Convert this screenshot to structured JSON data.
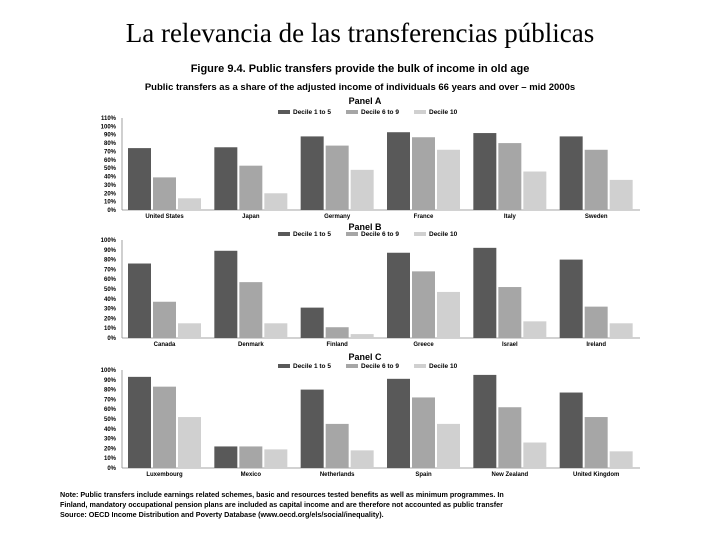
{
  "slide": {
    "title": "La relevancia de las transferencias públicas"
  },
  "figure": {
    "title": "Figure 9.4. Public transfers provide the bulk of income in old age",
    "subtitle": "Public transfers as a share of the adjusted income of individuals 66 years and over – mid 2000s",
    "note_line1": "Note: Public transfers include earnings related schemes, basic and resources tested benefits as well as minimum programmes. In",
    "note_line2": "Finland, mandatory occupational pension plans are included as capital income and are therefore not accounted as public transfer",
    "source": "Source: OECD Income Distribution and Poverty Database (www.oecd.org/els/social/inequality)."
  },
  "colors": {
    "decile1": "#595959",
    "decile5": "#a6a6a6",
    "decile10": "#d0d0d0"
  },
  "chart_data": [
    {
      "type": "bar",
      "title": "Panel A",
      "legend": [
        "Decile 1 to 5",
        "Decile 6 to 9",
        "Decile 10"
      ],
      "categories": [
        "United States",
        "Japan",
        "Germany",
        "France",
        "Italy",
        "Sweden"
      ],
      "series": [
        {
          "name": "Decile 1 to 5",
          "values": [
            74,
            75,
            88,
            93,
            92,
            88
          ]
        },
        {
          "name": "Decile 6 to 9",
          "values": [
            39,
            53,
            77,
            87,
            80,
            72
          ]
        },
        {
          "name": "Decile 10",
          "values": [
            14,
            20,
            48,
            72,
            46,
            36
          ]
        }
      ],
      "yticks": [
        "0%",
        "10%",
        "20%",
        "30%",
        "40%",
        "50%",
        "60%",
        "70%",
        "80%",
        "90%",
        "100%",
        "110%"
      ],
      "ylim": [
        0,
        110
      ]
    },
    {
      "type": "bar",
      "title": "Panel B",
      "legend": [
        "Decile 1 to 5",
        "Decile 6 to 9",
        "Decile 10"
      ],
      "categories": [
        "Canada",
        "Denmark",
        "Finland",
        "Greece",
        "Israel",
        "Ireland"
      ],
      "series": [
        {
          "name": "Decile 1 to 5",
          "values": [
            76,
            89,
            31,
            87,
            92,
            80
          ]
        },
        {
          "name": "Decile 6 to 9",
          "values": [
            37,
            57,
            11,
            68,
            52,
            32
          ]
        },
        {
          "name": "Decile 10",
          "values": [
            15,
            15,
            4,
            47,
            17,
            15
          ]
        }
      ],
      "yticks": [
        "0%",
        "10%",
        "20%",
        "30%",
        "40%",
        "50%",
        "60%",
        "70%",
        "80%",
        "90%",
        "100%"
      ],
      "ylim": [
        0,
        100
      ]
    },
    {
      "type": "bar",
      "title": "Panel C",
      "legend": [
        "Decile 1 to 5",
        "Decile 6 to 9",
        "Decile 10"
      ],
      "categories": [
        "Luxembourg",
        "Mexico",
        "Netherlands",
        "Spain",
        "New Zealand",
        "United Kingdom"
      ],
      "series": [
        {
          "name": "Decile 1 to 5",
          "values": [
            93,
            22,
            80,
            91,
            95,
            77
          ]
        },
        {
          "name": "Decile 6 to 9",
          "values": [
            83,
            22,
            45,
            72,
            62,
            52
          ]
        },
        {
          "name": "Decile 10",
          "values": [
            52,
            19,
            18,
            45,
            26,
            17
          ]
        }
      ],
      "yticks": [
        "0%",
        "10%",
        "20%",
        "30%",
        "40%",
        "50%",
        "60%",
        "70%",
        "80%",
        "90%",
        "100%"
      ],
      "ylim": [
        0,
        100
      ]
    }
  ]
}
